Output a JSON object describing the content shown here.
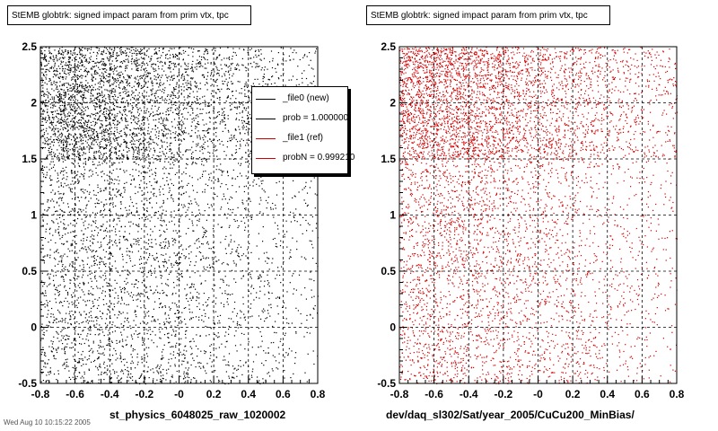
{
  "colors": {
    "new": "#000000",
    "ref": "#d40000",
    "frame": "#000000",
    "grid": "#000000"
  },
  "left_panel": {
    "title": "StEMB globtrk: signed impact param from prim vtx, tpc",
    "xlabel": "st_physics_6048025_raw_1020002",
    "footer": "Wed Aug 10 10:15:22 2005"
  },
  "right_panel": {
    "title": "StEMB globtrk: signed impact param from prim vtx, tpc",
    "xlabel": "dev/daq_sl302/Sat/year_2005/CuCu200_MinBias/"
  },
  "legend": {
    "entries": [
      {
        "label": "_file0 (new)",
        "color": "#000000"
      },
      {
        "label": "prob = 1.000000",
        "color": "#000000"
      },
      {
        "label": "_file1 (ref)",
        "color": "#d40000"
      },
      {
        "label": "probN = 0.999210",
        "color": "#d40000"
      }
    ]
  },
  "chart_data": [
    {
      "type": "scatter",
      "title": "StEMB globtrk: signed impact param from prim vtx, tpc",
      "xlabel": "st_physics_6048025_raw_1020002",
      "ylabel": "",
      "xlim": [
        -0.8,
        0.8
      ],
      "ylim": [
        -0.5,
        2.5
      ],
      "xticks": [
        "-0.8",
        "-0.6",
        "-0.4",
        "-0.2",
        "-0",
        "0.2",
        "0.4",
        "0.6",
        "0.8"
      ],
      "yticks": [
        "-0.5",
        "0",
        "0.5",
        "1",
        "1.5",
        "2",
        "2.5"
      ],
      "grid": true,
      "series": [
        {
          "name": "_file0 (new)",
          "color": "#000000",
          "density_regions": [
            {
              "x": [
                -0.8,
                0.8
              ],
              "y": [
                1.5,
                2.5
              ],
              "relative_density": "high, peaked near x=-0.55"
            },
            {
              "x": [
                -0.8,
                0.8
              ],
              "y": [
                -0.5,
                1.5
              ],
              "relative_density": "moderate, decreasing toward x=0.8"
            }
          ]
        }
      ]
    },
    {
      "type": "scatter",
      "title": "StEMB globtrk: signed impact param from prim vtx, tpc",
      "xlabel": "dev/daq_sl302/Sat/year_2005/CuCu200_MinBias/",
      "ylabel": "",
      "xlim": [
        -0.8,
        0.8
      ],
      "ylim": [
        -0.5,
        2.5
      ],
      "xticks": [
        "-0.8",
        "-0.6",
        "-0.4",
        "-0.2",
        "-0",
        "0.2",
        "0.4",
        "0.6",
        "0.8"
      ],
      "yticks": [
        "-0.5",
        "0",
        "0.5",
        "1",
        "1.5",
        "2",
        "2.5"
      ],
      "grid": true,
      "series": [
        {
          "name": "_file1 (ref)",
          "color": "#d40000",
          "density_regions": [
            {
              "x": [
                -0.8,
                0.8
              ],
              "y": [
                1.5,
                2.5
              ],
              "relative_density": "high, peaked near x=-0.55"
            },
            {
              "x": [
                -0.8,
                0.8
              ],
              "y": [
                -0.5,
                1.5
              ],
              "relative_density": "moderate, decreasing toward x=0.8"
            }
          ]
        }
      ]
    }
  ]
}
